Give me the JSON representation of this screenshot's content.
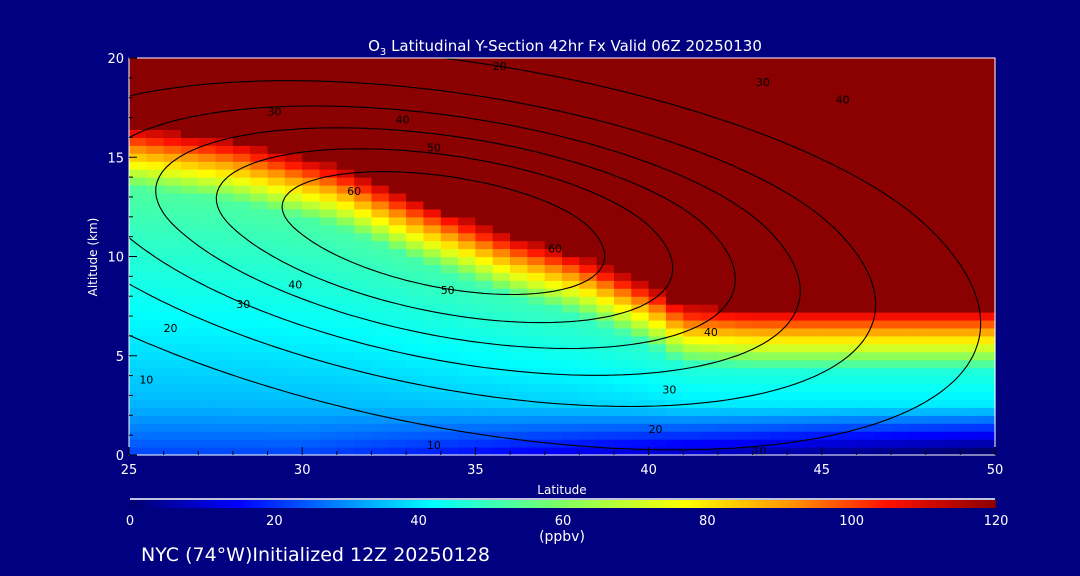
{
  "chart_data": {
    "type": "heatmap",
    "title_main": "O",
    "title_sub": "3",
    "title_rest": " Latitudinal Y-Section 42hr  Fx Valid 06Z 20250130",
    "xlabel": "Latitude",
    "ylabel": "Altitude (km)",
    "xlim": [
      25,
      50
    ],
    "ylim": [
      0,
      20
    ],
    "xticks": [
      "25",
      "30",
      "35",
      "40",
      "45",
      "50"
    ],
    "yticks": [
      "0",
      "5",
      "10",
      "15",
      "20"
    ],
    "colorbar": {
      "label": "(ppbv)",
      "range": [
        0,
        120
      ],
      "ticks": [
        "0",
        "20",
        "40",
        "60",
        "80",
        "100",
        "120"
      ],
      "stops": [
        {
          "v": 0,
          "c": "#000070"
        },
        {
          "v": 15,
          "c": "#0000ff"
        },
        {
          "v": 42,
          "c": "#00ffff"
        },
        {
          "v": 60,
          "c": "#80ff60"
        },
        {
          "v": 77,
          "c": "#ffff00"
        },
        {
          "v": 92,
          "c": "#ff9000"
        },
        {
          "v": 105,
          "c": "#ff1000"
        },
        {
          "v": 120,
          "c": "#8b0000"
        }
      ]
    },
    "tropopause_km_by_latitude": [
      [
        25,
        16.5
      ],
      [
        28,
        15.8
      ],
      [
        31,
        14.5
      ],
      [
        33,
        13
      ],
      [
        36,
        11
      ],
      [
        38,
        10
      ],
      [
        40,
        8.5
      ],
      [
        41,
        7.5
      ],
      [
        43,
        7.3
      ],
      [
        50,
        7.3
      ]
    ],
    "contour_levels": [
      10,
      20,
      30,
      40,
      50,
      60
    ],
    "contour_labels": [
      {
        "text": "10",
        "lat": 25.5,
        "alt": 3.8
      },
      {
        "text": "20",
        "lat": 26.2,
        "alt": 6.4
      },
      {
        "text": "30",
        "lat": 28.3,
        "alt": 7.6
      },
      {
        "text": "40",
        "lat": 29.8,
        "alt": 8.6
      },
      {
        "text": "50",
        "lat": 34.2,
        "alt": 8.3
      },
      {
        "text": "60",
        "lat": 31.5,
        "alt": 13.3
      },
      {
        "text": "60",
        "lat": 37.3,
        "alt": 10.4
      },
      {
        "text": "50",
        "lat": 33.8,
        "alt": 15.5
      },
      {
        "text": "40",
        "lat": 32.9,
        "alt": 16.9
      },
      {
        "text": "30",
        "lat": 29.2,
        "alt": 17.3
      },
      {
        "text": "20",
        "lat": 35.7,
        "alt": 19.6
      },
      {
        "text": "30",
        "lat": 43.3,
        "alt": 18.8
      },
      {
        "text": "40",
        "lat": 45.6,
        "alt": 17.9
      },
      {
        "text": "40",
        "lat": 41.8,
        "alt": 6.2
      },
      {
        "text": "30",
        "lat": 40.6,
        "alt": 3.3
      },
      {
        "text": "20",
        "lat": 40.2,
        "alt": 1.3
      },
      {
        "text": "10",
        "lat": 33.8,
        "alt": 0.5
      },
      {
        "text": "10",
        "lat": 43.2,
        "alt": 0.2
      }
    ]
  },
  "footer": "NYC (74°W)Initialized 12Z 20250128"
}
